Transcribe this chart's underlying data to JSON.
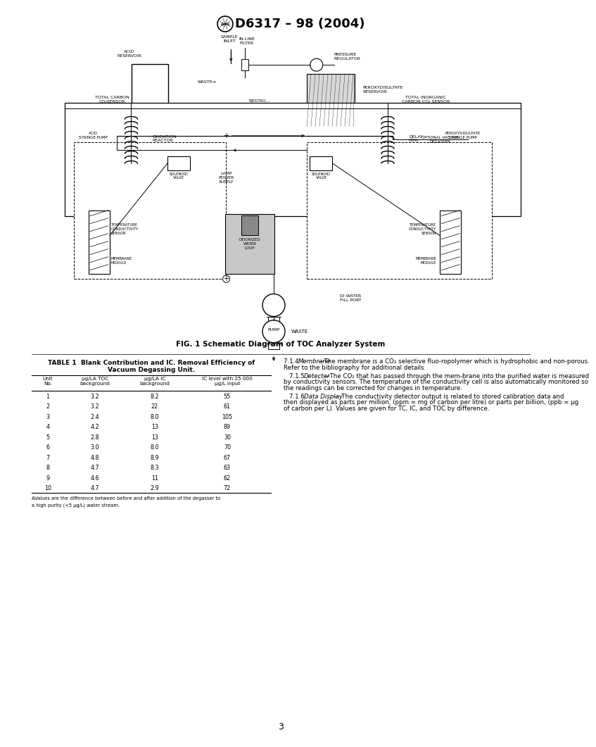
{
  "title": "D6317 – 98 (2004)",
  "fig_caption": "FIG. 1 Schematic Diagram of TOC Analyzer System",
  "table_title_line1": "TABLE 1  Blank Contribution and IC. Removal Efficiency of",
  "table_title_line2": "Vacuum Degassing Unit.",
  "table_col_headers": [
    "Unit\nNo.",
    "µg/LA TOC\nbackground",
    "µg/LA IC\nbackground",
    "IC level with 25 000\nµg/L input"
  ],
  "table_data": [
    [
      "1",
      "3.2",
      "8.2",
      "55"
    ],
    [
      "2",
      "3.2",
      "22",
      "61"
    ],
    [
      "3",
      "2.4",
      "8.0",
      "105"
    ],
    [
      "4",
      "4.2",
      "13",
      "89"
    ],
    [
      "5",
      "2.8",
      "13",
      "30"
    ],
    [
      "6",
      "3.0",
      "8.0",
      "70"
    ],
    [
      "7",
      "4.8",
      "8.9",
      "67"
    ],
    [
      "8",
      "4.7",
      "8.3",
      "63"
    ],
    [
      "9",
      "4.6",
      "11",
      "62"
    ],
    [
      "10",
      "4.7",
      "2.9",
      "72"
    ]
  ],
  "footnote_A": "AValues are the difference between before and after addition of the degasser to",
  "footnote_B": "a high purity (<5 µg/L) water stream.",
  "p714_num": "7.1.4",
  "p714_italic": "Membrane",
  "p714_rest": "—The membrane is a CO₂ selective fluo-ropolymer which is hydrophobic and non-porous. Refer to the bibliography for additional details.",
  "p715_num": "7.1.5",
  "p715_italic": "Detector",
  "p715_rest": "—The CO₂ that has passed through the mem-brane into the purified water is measured by conductivity sensors. The temperature of the conductivity cell is also automatically monitored so the readings can be corrected for changes in temperature.",
  "p716_num": "7.1.6",
  "p716_italic": "Data Display",
  "p716_rest": "— The conductivity detector output is related to stored calibration data and then displayed as parts per million, (ppm = mg of carbon per litre) or parts per billion, (ppb = µg of carbon per L). Values are given for TC, IC, and TOC by difference.",
  "page_num": "3",
  "bg": "#ffffff",
  "black": "#000000",
  "gray": "#aaaaaa",
  "lightgray": "#cccccc"
}
